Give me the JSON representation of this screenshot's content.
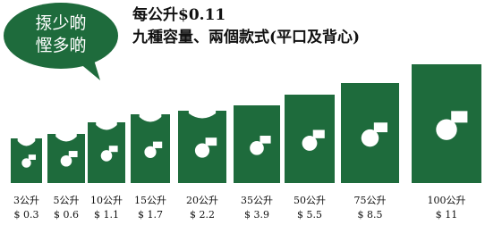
{
  "bubble": {
    "lines": [
      "揼少啲",
      "慳多啲"
    ]
  },
  "header": {
    "price": "每公升$0.11",
    "subtitle": "九種容量、兩個款式(平口及背心)"
  },
  "bags": [
    {
      "size": "3公升",
      "price": "$ 0.3"
    },
    {
      "size": "5公升",
      "price": "$ 0.6"
    },
    {
      "size": "10公升",
      "price": "$ 1.1"
    },
    {
      "size": "15公升",
      "price": "$ 1.7"
    },
    {
      "size": "20公升",
      "price": "$ 2.2"
    },
    {
      "size": "35公升",
      "price": "$ 3.9"
    },
    {
      "size": "50公升",
      "price": "$ 5.5"
    },
    {
      "size": "75公升",
      "price": "$ 8.5"
    },
    {
      "size": "100公升",
      "price": "$ 11"
    }
  ]
}
